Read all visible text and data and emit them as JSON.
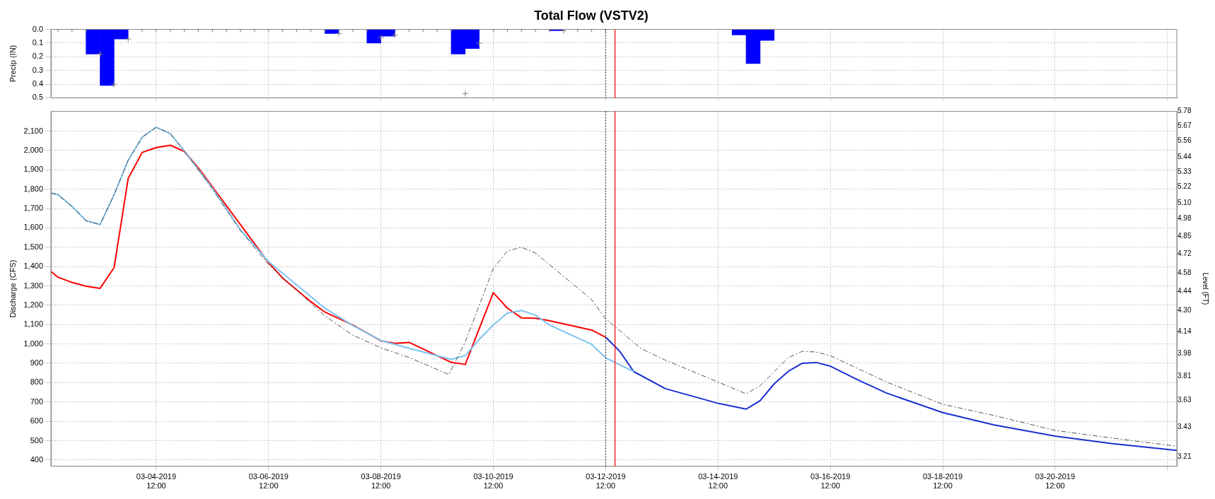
{
  "chart_data": [
    {
      "type": "bar",
      "title": "Total Flow (VSTV2)",
      "ylabel": "Precip (IN)",
      "xlim": [
        "2019-03-02T15:00",
        "2019-03-22T16:00"
      ],
      "xticks": [
        {
          "value": "2019-03-04T12:00",
          "label": null
        },
        {
          "value": "2019-03-06T12:00",
          "label": null
        },
        {
          "value": "2019-03-08T12:00",
          "label": null
        },
        {
          "value": "2019-03-10T12:00",
          "label": null
        },
        {
          "value": "2019-03-12T12:00",
          "label": null
        },
        {
          "value": "2019-03-14T12:00",
          "label": null
        },
        {
          "value": "2019-03-16T12:00",
          "label": null
        },
        {
          "value": "2019-03-18T12:00",
          "label": null
        },
        {
          "value": "2019-03-20T12:00",
          "label": null
        },
        {
          "value": "2019-03-22T12:00",
          "label": null
        }
      ],
      "ylim": [
        0.5,
        0
      ],
      "yticks": [
        {
          "value": 0,
          "label": "0.0"
        },
        {
          "value": 0.1,
          "label": "0.1"
        },
        {
          "value": 0.2,
          "label": "0.2"
        },
        {
          "value": 0.3,
          "label": "0.3"
        },
        {
          "value": 0.4,
          "label": "0.4"
        },
        {
          "value": 0.5,
          "label": "0.5"
        }
      ],
      "tick_labels": "y",
      "grid": true,
      "legend": false,
      "ref_lines": [
        {
          "axis": "x",
          "value": "2019-03-12T12:00",
          "color": "#333333",
          "line_style": "dotted"
        },
        {
          "axis": "x",
          "value": "2019-03-12T16:00",
          "color": "#ff0000",
          "line_style": "solid"
        }
      ],
      "series": [
        {
          "type": "bar",
          "color": "#0000ff",
          "x": [
            "2019-03-03T09:00",
            "2019-03-03T15:00",
            "2019-03-03T21:00",
            "2019-03-07T15:00",
            "2019-03-08T09:00",
            "2019-03-08T15:00",
            "2019-03-09T21:00",
            "2019-03-10T03:00",
            "2019-03-11T15:00",
            "2019-03-14T21:00",
            "2019-03-15T03:00",
            "2019-03-15T09:00"
          ],
          "values": [
            0.18,
            0.41,
            0.07,
            0.03,
            0.1,
            0.05,
            0.18,
            0.14,
            0.01,
            0.04,
            0.25,
            0.08
          ]
        },
        {
          "type": "scatter",
          "color": "#808080",
          "marker": "cross",
          "x": [
            "2019-03-02T18:00",
            "2019-03-03T00:00",
            "2019-03-03T06:00",
            "2019-03-03T12:00",
            "2019-03-03T18:00",
            "2019-03-04T00:00",
            "2019-03-04T06:00",
            "2019-03-04T12:00",
            "2019-03-04T18:00",
            "2019-03-05T00:00",
            "2019-03-05T06:00",
            "2019-03-05T12:00",
            "2019-03-05T18:00",
            "2019-03-06T00:00",
            "2019-03-06T06:00",
            "2019-03-06T12:00",
            "2019-03-06T18:00",
            "2019-03-07T00:00",
            "2019-03-07T06:00",
            "2019-03-07T12:00",
            "2019-03-07T18:00",
            "2019-03-08T00:00",
            "2019-03-08T06:00",
            "2019-03-08T12:00",
            "2019-03-08T18:00",
            "2019-03-09T00:00",
            "2019-03-09T06:00",
            "2019-03-09T12:00",
            "2019-03-09T18:00",
            "2019-03-10T00:00",
            "2019-03-10T06:00",
            "2019-03-10T12:00",
            "2019-03-10T18:00",
            "2019-03-11T00:00",
            "2019-03-11T06:00",
            "2019-03-11T12:00",
            "2019-03-11T18:00",
            "2019-03-12T00:00",
            "2019-03-12T06:00",
            "2019-03-12T12:00"
          ],
          "values": [
            0,
            0,
            0,
            0.18,
            0.4,
            0.07,
            0,
            0,
            0,
            0,
            0,
            0,
            0,
            0,
            0,
            0,
            0,
            0,
            0,
            0,
            0.03,
            0,
            0,
            0.06,
            0.04,
            0,
            0,
            0,
            0,
            0.47,
            0.1,
            0,
            0,
            0,
            0,
            0,
            0.01,
            0,
            0,
            0
          ]
        }
      ]
    },
    {
      "type": "line",
      "ylabel": "Discharge (CFS)",
      "y2label": "Level (FT)",
      "xlim": [
        "2019-03-02T15:00",
        "2019-03-22T16:00"
      ],
      "xticks": [
        {
          "value": "2019-03-04T12:00",
          "label": "03-04-2019 12:00"
        },
        {
          "value": "2019-03-06T12:00",
          "label": "03-06-2019 12:00"
        },
        {
          "value": "2019-03-08T12:00",
          "label": "03-08-2019 12:00"
        },
        {
          "value": "2019-03-10T12:00",
          "label": "03-10-2019 12:00"
        },
        {
          "value": "2019-03-12T12:00",
          "label": "03-12-2019 12:00"
        },
        {
          "value": "2019-03-14T12:00",
          "label": "03-14-2019 12:00"
        },
        {
          "value": "2019-03-16T12:00",
          "label": "03-16-2019 12:00"
        },
        {
          "value": "2019-03-18T12:00",
          "label": "03-18-2019 12:00"
        },
        {
          "value": "2019-03-20T12:00",
          "label": "03-20-2019 12:00"
        },
        {
          "value": "2019-03-22T12:00",
          "label": null
        }
      ],
      "ylim": [
        368,
        2202
      ],
      "yticks": [
        400,
        500,
        600,
        700,
        800,
        900,
        {
          "value": 1000,
          "label": "1,000"
        },
        {
          "value": 1100,
          "label": "1,100"
        },
        {
          "value": 1200,
          "label": "1,200"
        },
        {
          "value": 1300,
          "label": "1,300"
        },
        {
          "value": 1400,
          "label": "1,400"
        },
        {
          "value": 1500,
          "label": "1,500"
        },
        {
          "value": 1600,
          "label": "1,600"
        },
        {
          "value": 1700,
          "label": "1,700"
        },
        {
          "value": 1800,
          "label": "1,800"
        },
        {
          "value": 1900,
          "label": "1,900"
        },
        {
          "value": 2000,
          "label": "2,000"
        },
        {
          "value": 2100,
          "label": "2,100"
        }
      ],
      "y2lim": [
        3.14,
        5.78
      ],
      "y2ticks": [
        3.21,
        3.43,
        3.63,
        3.81,
        3.98,
        4.14,
        {
          "value": 4.3,
          "label": "4.30"
        },
        4.44,
        4.58,
        4.72,
        4.85,
        4.98,
        {
          "value": 5.1,
          "label": "5.10"
        },
        5.22,
        5.33,
        5.44,
        5.56,
        5.67,
        5.78
      ],
      "grid": true,
      "legend": false,
      "ref_lines": [
        {
          "axis": "x",
          "value": "2019-03-12T12:00",
          "color": "#333333",
          "line_style": "dotted"
        },
        {
          "axis": "x",
          "value": "2019-03-12T16:00",
          "color": "#ff0000",
          "line_style": "solid"
        }
      ],
      "series": [
        {
          "color": "#555555",
          "line_style": "dashed",
          "x": [
            "2019-03-02T15:00",
            "2019-03-02T18:00",
            "2019-03-03T00:00",
            "2019-03-03T06:00",
            "2019-03-03T12:00",
            "2019-03-03T18:00",
            "2019-03-04T00:00",
            "2019-03-04T06:00",
            "2019-03-04T12:00",
            "2019-03-04T18:00",
            "2019-03-05T00:00",
            "2019-03-05T12:00",
            "2019-03-06T00:00",
            "2019-03-06T12:00",
            "2019-03-07T12:00",
            "2019-03-08T00:00",
            "2019-03-08T12:00",
            "2019-03-09T00:00",
            "2019-03-09T17:00",
            "2019-03-10T00:00",
            "2019-03-10T12:00",
            "2019-03-10T18:00",
            "2019-03-11T00:00",
            "2019-03-11T06:00",
            "2019-03-11T12:00",
            "2019-03-12T06:00",
            "2019-03-12T12:00",
            "2019-03-13T03:00",
            "2019-03-13T13:00",
            "2019-03-14T12:00",
            "2019-03-15T00:00",
            "2019-03-15T06:00",
            "2019-03-15T18:00",
            "2019-03-16T00:00",
            "2019-03-16T06:00",
            "2019-03-16T12:00",
            "2019-03-17T12:00",
            "2019-03-18T12:00",
            "2019-03-19T10:00",
            "2019-03-20T12:00",
            "2019-03-21T12:00",
            "2019-03-22T16:00"
          ],
          "values": [
            1780,
            1772,
            1711,
            1637,
            1617,
            1772,
            1949,
            2069,
            2120,
            2087,
            1997,
            1800,
            1585,
            1410,
            1145,
            1045,
            980,
            930,
            842,
            1010,
            1390,
            1480,
            1500,
            1470,
            1410,
            1229,
            1130,
            977,
            919,
            803,
            742,
            784,
            929,
            962,
            958,
            939,
            803,
            688,
            630,
            553,
            514,
            471
          ]
        },
        {
          "color": "#7cc3f0",
          "x": [
            "2019-03-02T15:00",
            "2019-03-02T18:00",
            "2019-03-03T00:00",
            "2019-03-03T06:00",
            "2019-03-03T12:00",
            "2019-03-03T18:00",
            "2019-03-04T00:00",
            "2019-03-04T06:00",
            "2019-03-04T12:00",
            "2019-03-04T18:00",
            "2019-03-05T00:00",
            "2019-03-05T12:00",
            "2019-03-06T00:00",
            "2019-03-06T12:00",
            "2019-03-06T18:00",
            "2019-03-07T06:00",
            "2019-03-07T12:00",
            "2019-03-08T00:00",
            "2019-03-08T12:00",
            "2019-03-08T22:00",
            "2019-03-09T18:00",
            "2019-03-10T00:00",
            "2019-03-10T06:00",
            "2019-03-10T12:00",
            "2019-03-10T18:00",
            "2019-03-11T00:00",
            "2019-03-11T06:00",
            "2019-03-11T12:00",
            "2019-03-12T06:00",
            "2019-03-12T12:00",
            "2019-03-13T00:00"
          ],
          "values": [
            1780,
            1772,
            1711,
            1637,
            1617,
            1772,
            1949,
            2069,
            2120,
            2087,
            1997,
            1805,
            1590,
            1425,
            1365,
            1245,
            1185,
            1095,
            1018,
            984,
            920,
            940,
            1024,
            1098,
            1159,
            1173,
            1149,
            1098,
            998,
            928,
            857
          ]
        },
        {
          "color": "#ff0000",
          "x": [
            "2019-03-02T15:00",
            "2019-03-02T18:00",
            "2019-03-03T00:00",
            "2019-03-03T06:00",
            "2019-03-03T12:00",
            "2019-03-03T18:00",
            "2019-03-04T00:00",
            "2019-03-04T06:00",
            "2019-03-04T12:00",
            "2019-03-04T18:00",
            "2019-03-05T00:00",
            "2019-03-05T06:00",
            "2019-03-06T12:00",
            "2019-03-06T18:00",
            "2019-03-07T06:00",
            "2019-03-07T12:00",
            "2019-03-08T00:00",
            "2019-03-08T12:00",
            "2019-03-08T18:00",
            "2019-03-09T00:00",
            "2019-03-09T18:00",
            "2019-03-10T00:00",
            "2019-03-10T12:00",
            "2019-03-10T18:00",
            "2019-03-11T00:00",
            "2019-03-11T06:00",
            "2019-03-11T12:00",
            "2019-03-12T06:00",
            "2019-03-12T12:00"
          ],
          "values": [
            1375,
            1345,
            1318,
            1298,
            1287,
            1395,
            1855,
            1990,
            2015,
            2027,
            1995,
            1910,
            1420,
            1340,
            1219,
            1165,
            1098,
            1016,
            1003,
            1008,
            905,
            894,
            1265,
            1185,
            1135,
            1133,
            1120,
            1072,
            1035
          ]
        },
        {
          "color": "#1a2fd0",
          "x": [
            "2019-03-12T12:00",
            "2019-03-12T18:00",
            "2019-03-13T00:00",
            "2019-03-13T13:30",
            "2019-03-14T12:00",
            "2019-03-15T00:00",
            "2019-03-15T06:00",
            "2019-03-15T12:00",
            "2019-03-15T18:00",
            "2019-03-16T00:00",
            "2019-03-16T06:00",
            "2019-03-16T12:00",
            "2019-03-17T00:00",
            "2019-03-17T12:00",
            "2019-03-18T12:00",
            "2019-03-19T10:00",
            "2019-03-20T12:00",
            "2019-03-21T12:00",
            "2019-03-22T16:00"
          ],
          "values": [
            1035,
            962,
            857,
            769,
            693,
            663,
            707,
            794,
            858,
            900,
            904,
            885,
            813,
            746,
            645,
            581,
            524,
            485,
            450
          ]
        }
      ]
    }
  ]
}
